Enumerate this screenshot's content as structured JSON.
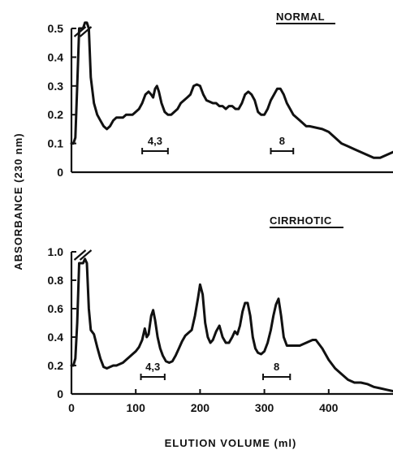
{
  "chart_data": [
    {
      "type": "line",
      "panel_label": "NORMAL",
      "ylim": [
        0,
        0.5
      ],
      "xlim": [
        0,
        500
      ],
      "y_ticks": [
        0,
        0.1,
        0.2,
        0.3,
        0.4,
        0.5
      ],
      "y_tick_labels": [
        "0",
        "0.1",
        "0.2",
        "0.3",
        "0.4",
        "0.5"
      ],
      "series": [
        {
          "x": [
            0,
            3,
            6,
            9,
            12,
            15,
            18,
            21,
            24,
            27,
            30,
            35,
            40,
            45,
            50,
            55,
            60,
            65,
            70,
            75,
            80,
            85,
            90,
            95,
            100,
            105,
            110,
            115,
            120,
            124,
            127,
            130,
            133,
            136,
            140,
            145,
            150,
            155,
            160,
            165,
            170,
            175,
            180,
            185,
            190,
            195,
            200,
            205,
            210,
            215,
            220,
            225,
            230,
            235,
            240,
            245,
            250,
            255,
            260,
            265,
            270,
            275,
            280,
            285,
            290,
            295,
            300,
            305,
            310,
            315,
            320,
            325,
            330,
            335,
            340,
            345,
            350,
            355,
            360,
            365,
            370,
            380,
            390,
            400,
            410,
            420,
            430,
            440,
            450,
            460,
            470,
            480,
            490,
            500
          ],
          "y": [
            0.1,
            0.1,
            0.12,
            0.3,
            0.5,
            0.5,
            0.5,
            0.52,
            0.52,
            0.5,
            0.33,
            0.24,
            0.2,
            0.18,
            0.16,
            0.15,
            0.16,
            0.18,
            0.19,
            0.19,
            0.19,
            0.2,
            0.2,
            0.2,
            0.21,
            0.22,
            0.24,
            0.27,
            0.28,
            0.27,
            0.26,
            0.29,
            0.3,
            0.28,
            0.24,
            0.21,
            0.2,
            0.2,
            0.21,
            0.22,
            0.24,
            0.25,
            0.26,
            0.27,
            0.3,
            0.305,
            0.3,
            0.27,
            0.25,
            0.245,
            0.24,
            0.24,
            0.23,
            0.23,
            0.22,
            0.23,
            0.23,
            0.22,
            0.22,
            0.24,
            0.27,
            0.28,
            0.27,
            0.25,
            0.21,
            0.2,
            0.2,
            0.22,
            0.25,
            0.27,
            0.29,
            0.29,
            0.27,
            0.24,
            0.22,
            0.2,
            0.19,
            0.18,
            0.17,
            0.16,
            0.16,
            0.155,
            0.15,
            0.14,
            0.12,
            0.1,
            0.09,
            0.08,
            0.07,
            0.06,
            0.05,
            0.05,
            0.06,
            0.07
          ]
        }
      ],
      "annotations": [
        {
          "text": "4,3",
          "x_from": 110,
          "x_to": 150
        },
        {
          "text": "8",
          "x_from": 310,
          "x_to": 345
        }
      ]
    },
    {
      "type": "line",
      "panel_label": "CIRRHOTIC",
      "ylim": [
        0,
        1.0
      ],
      "xlim": [
        0,
        500
      ],
      "y_ticks": [
        0,
        0.2,
        0.4,
        0.6,
        0.8,
        1.0
      ],
      "y_tick_labels": [
        "0",
        "0.2",
        "0.4",
        "0.6",
        "0.8",
        "1.0"
      ],
      "x_ticks": [
        0,
        100,
        200,
        300,
        400
      ],
      "x_tick_labels": [
        "0",
        "100",
        "200",
        "300",
        "400"
      ],
      "series": [
        {
          "x": [
            0,
            3,
            6,
            9,
            12,
            15,
            18,
            21,
            24,
            27,
            30,
            35,
            40,
            45,
            50,
            55,
            60,
            65,
            70,
            75,
            80,
            85,
            90,
            95,
            100,
            105,
            110,
            114,
            117,
            120,
            124,
            127,
            130,
            134,
            138,
            142,
            147,
            152,
            157,
            162,
            167,
            172,
            177,
            182,
            187,
            192,
            197,
            200,
            204,
            208,
            212,
            216,
            220,
            225,
            230,
            235,
            240,
            245,
            250,
            254,
            258,
            262,
            266,
            270,
            274,
            278,
            282,
            286,
            290,
            295,
            300,
            305,
            310,
            314,
            318,
            322,
            326,
            330,
            335,
            340,
            345,
            350,
            355,
            360,
            365,
            370,
            375,
            380,
            390,
            400,
            410,
            420,
            430,
            440,
            450,
            460,
            470,
            480,
            490,
            500
          ],
          "y": [
            0.2,
            0.2,
            0.25,
            0.5,
            0.92,
            0.92,
            0.92,
            0.95,
            0.92,
            0.6,
            0.45,
            0.42,
            0.33,
            0.25,
            0.19,
            0.18,
            0.19,
            0.2,
            0.2,
            0.21,
            0.22,
            0.24,
            0.26,
            0.28,
            0.3,
            0.33,
            0.38,
            0.46,
            0.4,
            0.42,
            0.55,
            0.59,
            0.52,
            0.4,
            0.32,
            0.27,
            0.23,
            0.22,
            0.23,
            0.27,
            0.32,
            0.37,
            0.41,
            0.43,
            0.45,
            0.55,
            0.68,
            0.77,
            0.7,
            0.5,
            0.4,
            0.36,
            0.38,
            0.44,
            0.48,
            0.4,
            0.36,
            0.36,
            0.4,
            0.44,
            0.42,
            0.48,
            0.58,
            0.64,
            0.64,
            0.55,
            0.4,
            0.32,
            0.29,
            0.28,
            0.3,
            0.36,
            0.45,
            0.55,
            0.63,
            0.67,
            0.55,
            0.4,
            0.34,
            0.34,
            0.34,
            0.34,
            0.34,
            0.35,
            0.36,
            0.37,
            0.38,
            0.38,
            0.32,
            0.24,
            0.18,
            0.14,
            0.1,
            0.08,
            0.08,
            0.07,
            0.05,
            0.04,
            0.03,
            0.02
          ]
        }
      ],
      "annotations": [
        {
          "text": "4,3",
          "x_from": 108,
          "x_to": 145
        },
        {
          "text": "8",
          "x_from": 298,
          "x_to": 340
        }
      ]
    }
  ],
  "axes": {
    "ylabel": "ABSORBANCE (230 nm)",
    "xlabel": "ELUTION VOLUME (ml)"
  }
}
